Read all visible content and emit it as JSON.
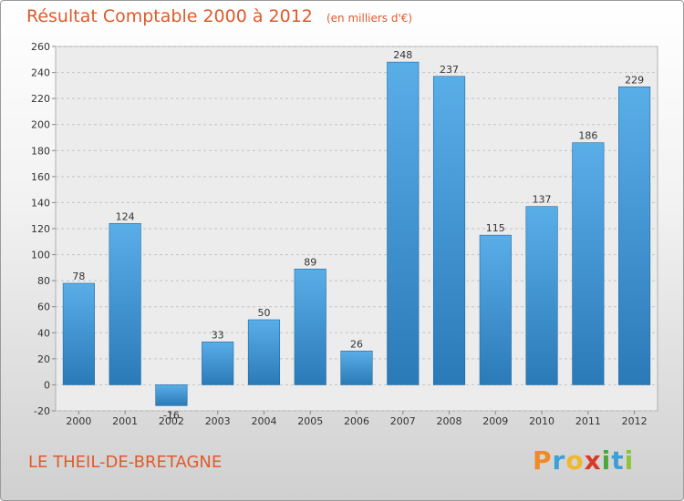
{
  "header": {
    "title": "Résultat Comptable 2000 à 2012",
    "subtitle": "(en milliers d'€)"
  },
  "footer": {
    "place": "LE THEIL-DE-BRETAGNE",
    "logo_text": "Proxiti"
  },
  "colors": {
    "title": "#e05a2b",
    "bar_top": "#5aaee8",
    "bar_bottom": "#2a7ab8",
    "logo": [
      "#f08a24",
      "#3da0d8",
      "#f0b82a",
      "#d83a2a",
      "#4aa83a",
      "#3da0d8",
      "#8cc43a"
    ]
  },
  "chart_data": {
    "type": "bar",
    "categories": [
      "2000",
      "2001",
      "2002",
      "2003",
      "2004",
      "2005",
      "2006",
      "2007",
      "2008",
      "2009",
      "2010",
      "2011",
      "2012"
    ],
    "values": [
      78,
      124,
      -16,
      33,
      50,
      89,
      26,
      248,
      237,
      115,
      137,
      186,
      229
    ],
    "data_labels": [
      "78",
      "124",
      "-16",
      "33",
      "50",
      "89",
      "26",
      "248",
      "237",
      "115",
      "137",
      "186",
      "229"
    ],
    "yticks": [
      -20,
      0,
      20,
      40,
      60,
      80,
      100,
      120,
      140,
      160,
      180,
      200,
      220,
      240,
      260
    ],
    "ylim": [
      -20,
      260
    ],
    "grid": "horizontal-dashed",
    "legend": "none"
  }
}
